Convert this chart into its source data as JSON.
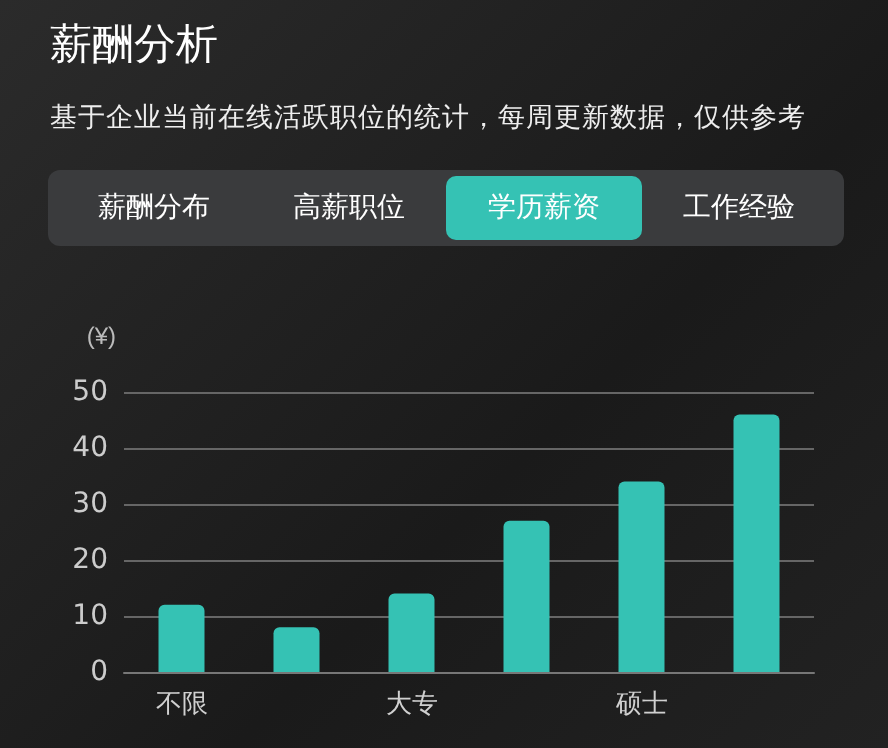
{
  "chart_data": {
    "type": "bar",
    "title": "薪酬分析",
    "subtitle": "基于企业当前在线活跃职位的统计，每周更新数据，仅供参考",
    "annotations": [
      "薪酬分布",
      "高薪职位",
      "学历薪资",
      "工作经验"
    ],
    "ylabel": "(¥)",
    "categories": [
      "不限",
      null,
      "大专",
      null,
      "硕士",
      null
    ],
    "values": [
      12,
      8,
      14,
      27,
      34,
      46
    ],
    "color": "#35c2b4",
    "ylim": [
      0,
      50
    ],
    "yticks": [
      0,
      10,
      20,
      30,
      40,
      50
    ],
    "grid": "y"
  }
}
